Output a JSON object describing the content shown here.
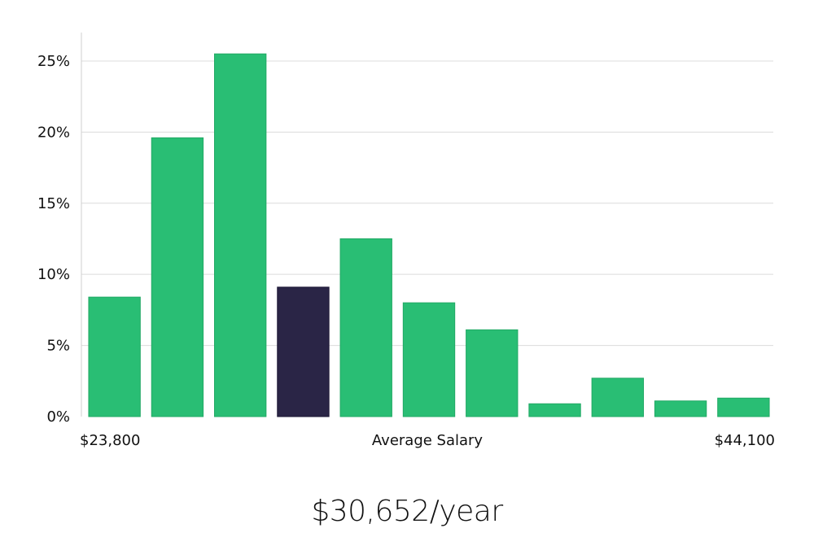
{
  "chart_data": {
    "type": "bar",
    "title": "",
    "xlabel": "Average Salary",
    "ylabel": "",
    "x_min_label": "$23,800",
    "x_max_label": "$44,100",
    "ylim": [
      0,
      27
    ],
    "yticks": [
      0,
      5,
      10,
      15,
      20,
      25
    ],
    "ytick_labels": [
      "0%",
      "5%",
      "10%",
      "15%",
      "20%",
      "25%"
    ],
    "values": [
      8.4,
      19.6,
      25.5,
      9.1,
      12.5,
      8.0,
      6.1,
      0.9,
      2.7,
      1.1,
      1.3
    ],
    "highlight_index": 3,
    "bar_color": "#29be74",
    "highlight_color": "#2a2546"
  },
  "salary": {
    "value": "$30,652/year"
  }
}
